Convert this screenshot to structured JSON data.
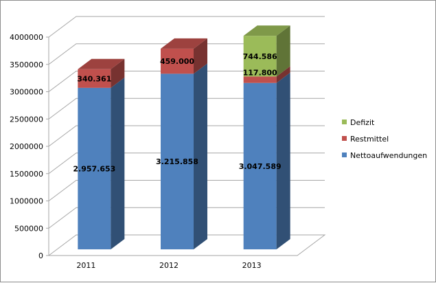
{
  "chart_data": {
    "type": "bar",
    "stacked": true,
    "three_d": true,
    "categories": [
      "2011",
      "2012",
      "2013"
    ],
    "series": [
      {
        "name": "Nettoaufwendungen",
        "color": "#4f81bd",
        "values": [
          2957653,
          3215858,
          3047589
        ],
        "labels": [
          "2.957.653",
          "3.215.858",
          "3.047.589"
        ]
      },
      {
        "name": "Restmittel",
        "color": "#c0504d",
        "values": [
          340361,
          459000,
          117800
        ],
        "labels": [
          "340.361",
          "459.000",
          "117.800"
        ]
      },
      {
        "name": "Defizit",
        "color": "#9bbb59",
        "values": [
          0,
          0,
          744586
        ],
        "labels": [
          "",
          "",
          "744.586"
        ]
      }
    ],
    "ylim": [
      0,
      4000000
    ],
    "yticks": [
      "0",
      "500000",
      "1000000",
      "1500000",
      "2000000",
      "2500000",
      "3000000",
      "3500000",
      "4000000"
    ],
    "grid": true,
    "legend_position": "right",
    "legend_order": [
      "Defizit",
      "Restmittel",
      "Nettoaufwendungen"
    ]
  }
}
